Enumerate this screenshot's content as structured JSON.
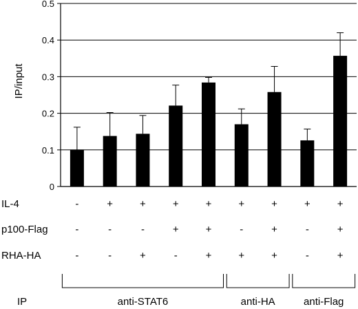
{
  "chart_data": {
    "type": "bar",
    "title": "",
    "xlabel": "",
    "ylabel": "IP/input",
    "ylim": [
      0,
      0.5
    ],
    "yticks": [
      "0",
      "0.1",
      "0.2",
      "0.3",
      "0.4",
      "0.5"
    ],
    "grid": "horizontal",
    "legend": "none",
    "bar_color": "#000000",
    "values": [
      0.1,
      0.138,
      0.144,
      0.221,
      0.284,
      0.17,
      0.258,
      0.126,
      0.357
    ],
    "error_up": [
      0.062,
      0.064,
      0.05,
      0.056,
      0.014,
      0.042,
      0.07,
      0.031,
      0.063
    ],
    "conditions": [
      {
        "label": "IL-4",
        "marks": [
          "-",
          "+",
          "+",
          "+",
          "+",
          "+",
          "+",
          "+",
          "+"
        ]
      },
      {
        "label": "p100-Flag",
        "marks": [
          "-",
          "-",
          "-",
          "+",
          "+",
          "-",
          "+",
          "-",
          "+"
        ]
      },
      {
        "label": "RHA-HA",
        "marks": [
          "-",
          "-",
          "+",
          "-",
          "+",
          "+",
          "+",
          "-",
          "+"
        ]
      }
    ],
    "ip_label": "IP",
    "groups": [
      {
        "name": "anti-STAT6",
        "from": 0,
        "to": 4
      },
      {
        "name": "anti-HA",
        "from": 5,
        "to": 6
      },
      {
        "name": "anti-Flag",
        "from": 7,
        "to": 8
      }
    ]
  }
}
